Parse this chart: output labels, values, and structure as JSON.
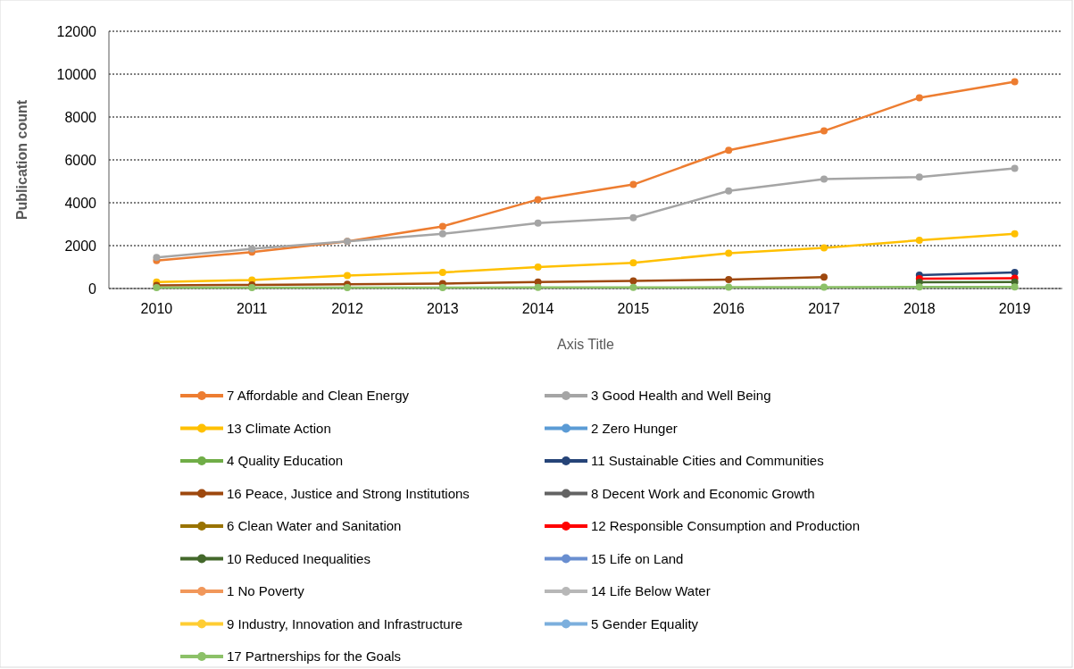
{
  "chart_data": {
    "type": "line",
    "ylabel": "Publication count",
    "xlabel": "Axis Title",
    "categories": [
      "2010",
      "2011",
      "2012",
      "2013",
      "2014",
      "2015",
      "2016",
      "2017",
      "2018",
      "2019"
    ],
    "ylim": [
      0,
      12000
    ],
    "yticks": [
      0,
      2000,
      4000,
      6000,
      8000,
      10000,
      12000
    ],
    "grid": "y",
    "legend": "bottom",
    "marker": "circle",
    "line_style": "solid",
    "series": [
      {
        "name": "7 Affordable and Clean Energy",
        "color": "#ed7d31",
        "values": [
          1300,
          1700,
          2200,
          2900,
          4150,
          4850,
          6450,
          7350,
          8900,
          9650
        ]
      },
      {
        "name": "3 Good Health and Well Being",
        "color": "#a5a5a5",
        "values": [
          1450,
          1850,
          2200,
          2550,
          3050,
          3300,
          4550,
          5100,
          5200,
          5600
        ]
      },
      {
        "name": "13 Climate Action",
        "color": "#ffc000",
        "values": [
          300,
          400,
          600,
          750,
          1000,
          1200,
          1650,
          1900,
          2250,
          2550
        ]
      },
      {
        "name": "2 Zero Hunger",
        "color": "#5b9bd5",
        "values": [
          null,
          null,
          null,
          null,
          null,
          null,
          null,
          null,
          null,
          null
        ]
      },
      {
        "name": "4 Quality Education",
        "color": "#70ad47",
        "values": [
          null,
          null,
          null,
          null,
          null,
          null,
          null,
          null,
          null,
          null
        ]
      },
      {
        "name": "11 Sustainable Cities and Communities",
        "color": "#264478",
        "values": [
          null,
          null,
          null,
          null,
          null,
          null,
          null,
          null,
          625,
          750
        ]
      },
      {
        "name": "16 Peace, Justice and Strong Institutions",
        "color": "#9e480e",
        "values": [
          150,
          170,
          200,
          230,
          300,
          350,
          420,
          530,
          null,
          null
        ]
      },
      {
        "name": "8 Decent Work and Economic Growth",
        "color": "#636363",
        "values": [
          null,
          null,
          null,
          null,
          null,
          null,
          null,
          null,
          null,
          null
        ]
      },
      {
        "name": "6 Clean Water and Sanitation",
        "color": "#997300",
        "values": [
          null,
          null,
          null,
          null,
          null,
          null,
          null,
          null,
          null,
          null
        ]
      },
      {
        "name": "12 Responsible Consumption and Production",
        "color": "#ff0000",
        "values": [
          null,
          null,
          null,
          null,
          null,
          null,
          null,
          null,
          460,
          480
        ]
      },
      {
        "name": "10 Reduced Inequalities",
        "color": "#43682b",
        "values": [
          null,
          null,
          null,
          null,
          null,
          null,
          null,
          null,
          290,
          300
        ]
      },
      {
        "name": "15 Life on Land",
        "color": "#698ed0",
        "values": [
          null,
          null,
          null,
          null,
          null,
          null,
          null,
          null,
          null,
          null
        ]
      },
      {
        "name": "1 No Poverty",
        "color": "#f1975a",
        "values": [
          null,
          null,
          null,
          null,
          null,
          null,
          null,
          null,
          null,
          null
        ]
      },
      {
        "name": "14 Life Below Water",
        "color": "#b7b7b7",
        "values": [
          null,
          null,
          null,
          null,
          null,
          null,
          null,
          null,
          null,
          null
        ]
      },
      {
        "name": "9 Industry, Innovation and Infrastructure",
        "color": "#ffcd33",
        "values": [
          null,
          null,
          null,
          null,
          null,
          null,
          null,
          null,
          null,
          null
        ]
      },
      {
        "name": "5 Gender Equality",
        "color": "#7cafdd",
        "values": [
          null,
          null,
          null,
          null,
          null,
          null,
          null,
          null,
          null,
          null
        ]
      },
      {
        "name": "17 Partnerships for the Goals",
        "color": "#8cc168",
        "values": [
          40,
          40,
          40,
          40,
          50,
          50,
          60,
          60,
          70,
          70
        ]
      }
    ]
  }
}
